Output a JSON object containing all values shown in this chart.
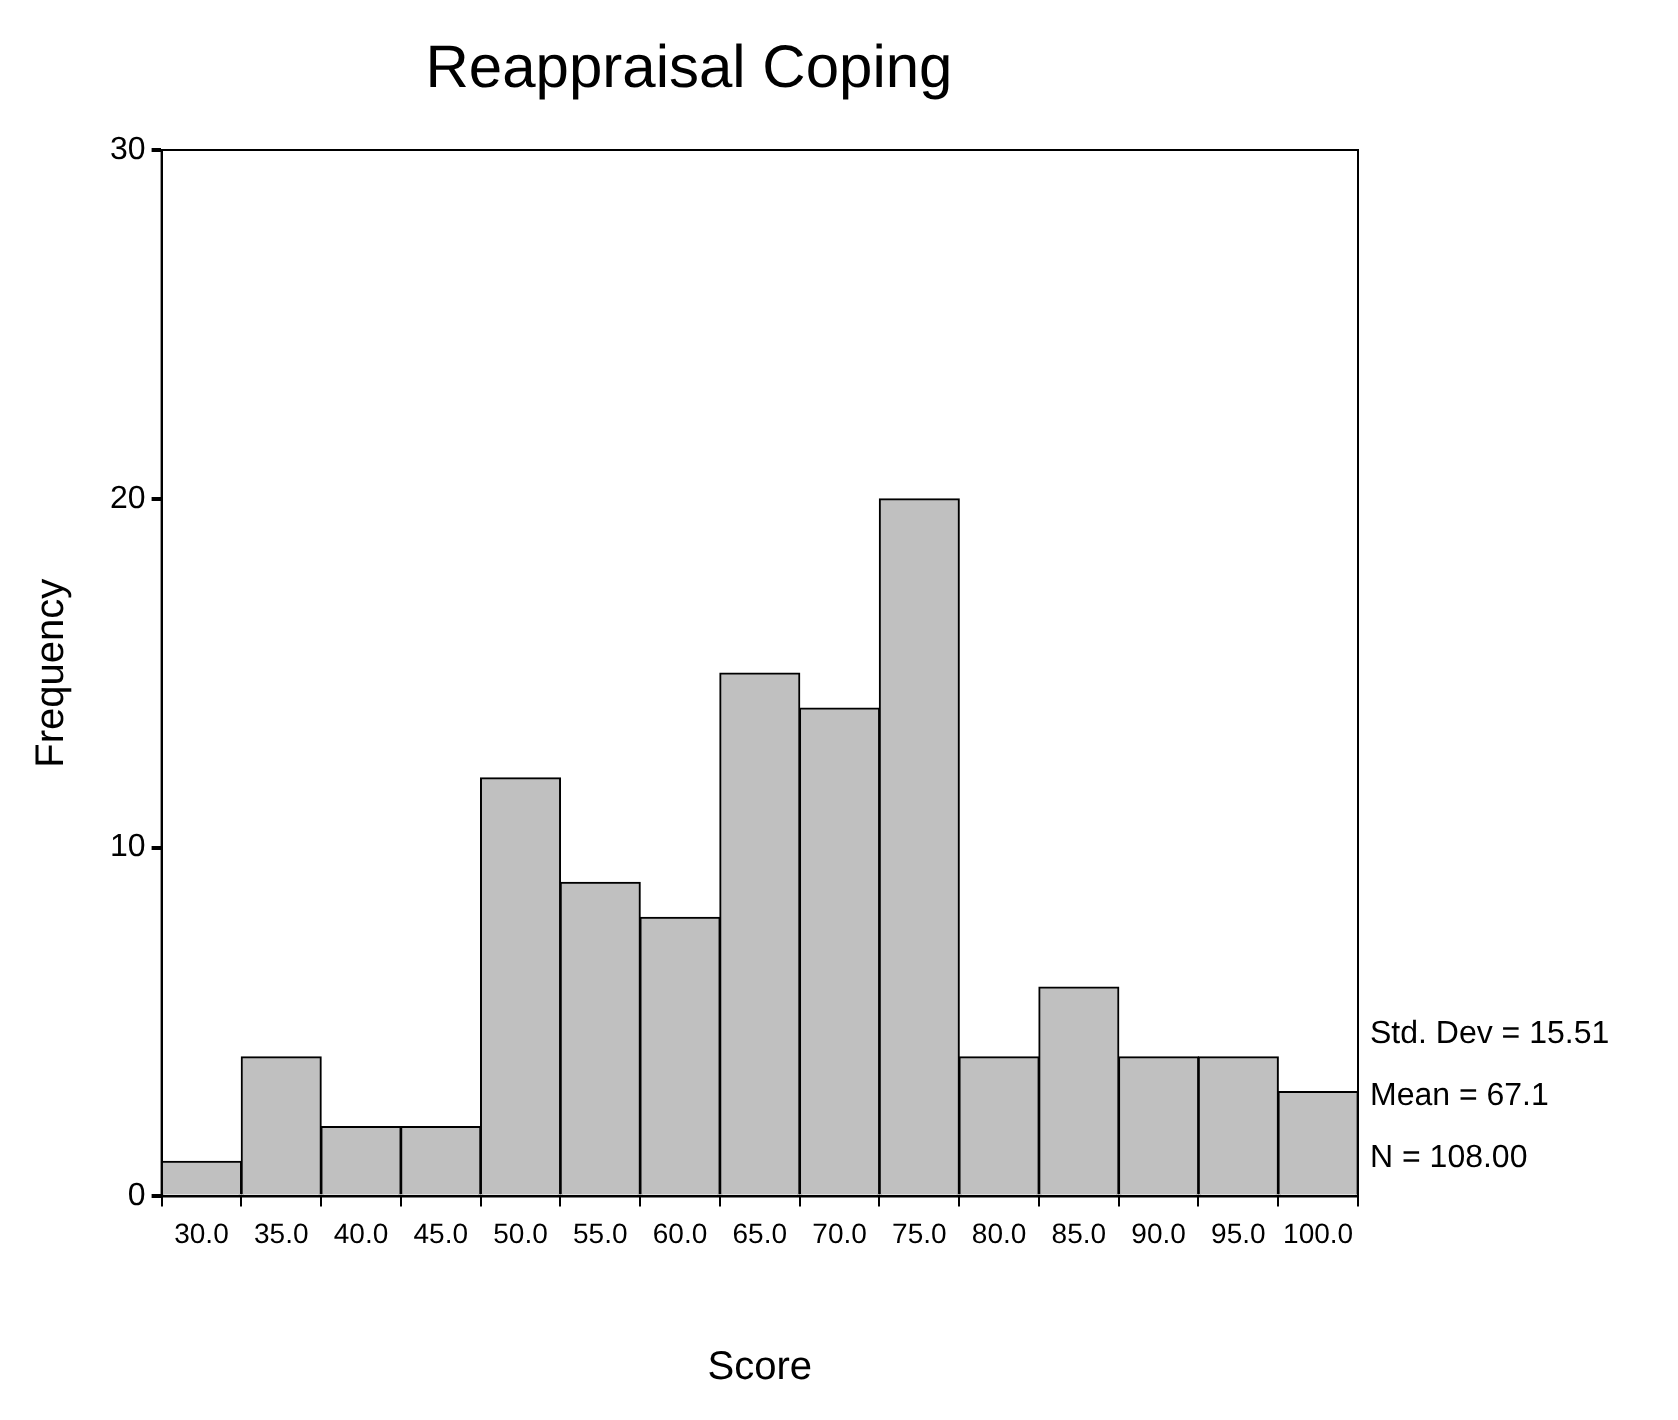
{
  "chart_data": {
    "type": "histogram",
    "title": "Reappraisal Coping",
    "xlabel": "Score",
    "ylabel": "Frequency",
    "bins": [
      27.5,
      32.5,
      37.5,
      42.5,
      47.5,
      52.5,
      57.5,
      62.5,
      67.5,
      72.5,
      77.5,
      82.5,
      87.5,
      92.5,
      97.5,
      102.5
    ],
    "values": [
      1,
      4,
      2,
      2,
      12,
      9,
      8,
      15,
      14,
      20,
      4,
      6,
      4,
      4,
      3
    ],
    "color": "#c0c0c0",
    "xlim": [
      27.5,
      102.5
    ],
    "xticks": [
      {
        "value": 30,
        "label": "30.0"
      },
      {
        "value": 35,
        "label": "35.0"
      },
      {
        "value": 40,
        "label": "40.0"
      },
      {
        "value": 45,
        "label": "45.0"
      },
      {
        "value": 50,
        "label": "50.0"
      },
      {
        "value": 55,
        "label": "55.0"
      },
      {
        "value": 60,
        "label": "60.0"
      },
      {
        "value": 65,
        "label": "65.0"
      },
      {
        "value": 70,
        "label": "70.0"
      },
      {
        "value": 75,
        "label": "75.0"
      },
      {
        "value": 80,
        "label": "80.0"
      },
      {
        "value": 85,
        "label": "85.0"
      },
      {
        "value": 90,
        "label": "90.0"
      },
      {
        "value": 95,
        "label": "95.0"
      },
      {
        "value": 100,
        "label": "100.0"
      }
    ],
    "ylim": [
      0,
      30
    ],
    "yticks": [
      0,
      10,
      20,
      30
    ],
    "grid": false,
    "legend": false,
    "annotations": [
      "Std. Dev = 15.51",
      "Mean = 67.1",
      "N = 108.00"
    ]
  }
}
